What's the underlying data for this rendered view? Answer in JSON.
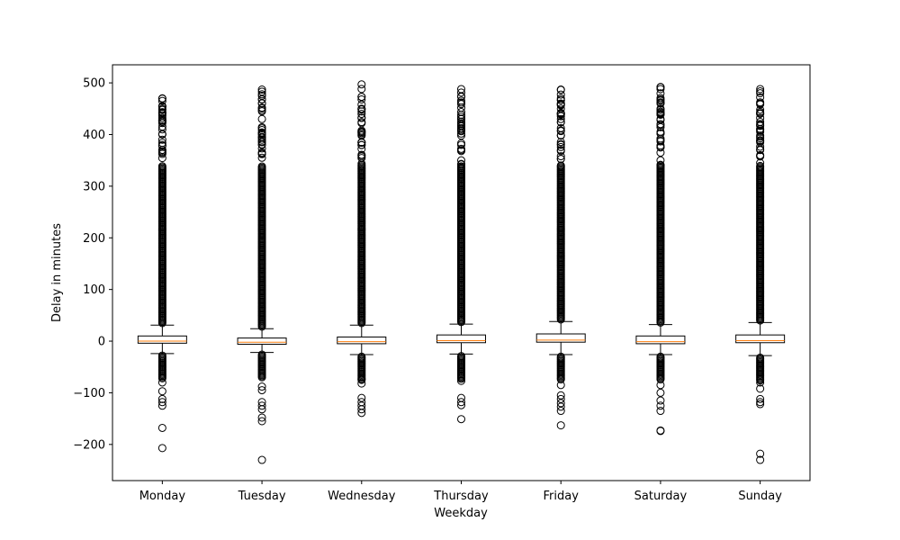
{
  "chart_data": {
    "type": "box",
    "title": "",
    "xlabel": "Weekday",
    "ylabel": "Delay in minutes",
    "ylim": [
      -270,
      535
    ],
    "y_ticks": [
      -200,
      -100,
      0,
      100,
      200,
      300,
      400,
      500
    ],
    "y_tick_labels": [
      "−200",
      "−100",
      "0",
      "100",
      "200",
      "300",
      "400",
      "500"
    ],
    "grid": false,
    "legend": "none",
    "colors": {
      "box_edge": "#000000",
      "median": "#ff7f0e",
      "flier_edge": "#000000"
    },
    "categories": [
      "Monday",
      "Tuesday",
      "Wednesday",
      "Thursday",
      "Friday",
      "Saturday",
      "Sunday"
    ],
    "boxes": [
      {
        "q1": -4,
        "median": 0,
        "q3": 10,
        "whisker_low": -24,
        "whisker_high": 31,
        "fliers_low_min": -207,
        "fliers_high_max": 470,
        "fliers_sparse": [
          -207,
          -168,
          -125,
          -118,
          -112,
          -97,
          -80,
          470,
          465,
          455,
          440,
          425,
          410,
          400,
          390,
          378,
          370
        ]
      },
      {
        "q1": -6,
        "median": -2,
        "q3": 6,
        "whisker_low": -22,
        "whisker_high": 24,
        "fliers_low_min": -230,
        "fliers_high_max": 487,
        "fliers_sparse": [
          -230,
          -155,
          -148,
          -132,
          -125,
          -118,
          -95,
          -88,
          487,
          478,
          452,
          445,
          430,
          412,
          400,
          390,
          380,
          362,
          355
        ]
      },
      {
        "q1": -5,
        "median": -1,
        "q3": 8,
        "whisker_low": -26,
        "whisker_high": 31,
        "fliers_low_min": -139,
        "fliers_high_max": 497,
        "fliers_sparse": [
          -139,
          -132,
          -125,
          -118,
          -110,
          -82,
          -75,
          497,
          473,
          468,
          458,
          440,
          432,
          422,
          405,
          398,
          385,
          372,
          360
        ]
      },
      {
        "q1": -3,
        "median": 1,
        "q3": 12,
        "whisker_low": -25,
        "whisker_high": 33,
        "fliers_low_min": -151,
        "fliers_high_max": 488,
        "fliers_sparse": [
          -151,
          -124,
          -118,
          -110,
          -77,
          488,
          473,
          462,
          452,
          430,
          425,
          408,
          398,
          380,
          368,
          350,
          335
        ]
      },
      {
        "q1": -2,
        "median": 2,
        "q3": 14,
        "whisker_low": -26,
        "whisker_high": 38,
        "fliers_low_min": -163,
        "fliers_high_max": 487,
        "fliers_sparse": [
          -163,
          -135,
          -127,
          -120,
          -112,
          -105,
          -85,
          487,
          470,
          460,
          450,
          440,
          430,
          408,
          398,
          380,
          370,
          358,
          340
        ]
      },
      {
        "q1": -5,
        "median": -1,
        "q3": 10,
        "whisker_low": -26,
        "whisker_high": 32,
        "fliers_low_min": -174,
        "fliers_high_max": 492,
        "fliers_sparse": [
          -174,
          -173,
          -135,
          -125,
          -115,
          -100,
          -85,
          492,
          488,
          468,
          460,
          450,
          440,
          428,
          418,
          402,
          392,
          375,
          365,
          350
        ]
      },
      {
        "q1": -3,
        "median": 1,
        "q3": 12,
        "whisker_low": -28,
        "whisker_high": 36,
        "fliers_low_min": -230,
        "fliers_high_max": 488,
        "fliers_sparse": [
          -230,
          -218,
          -122,
          -118,
          -112,
          -92,
          -80,
          488,
          480,
          472,
          460,
          448,
          432,
          418,
          408,
          398,
          385,
          370,
          360,
          345
        ]
      }
    ]
  }
}
